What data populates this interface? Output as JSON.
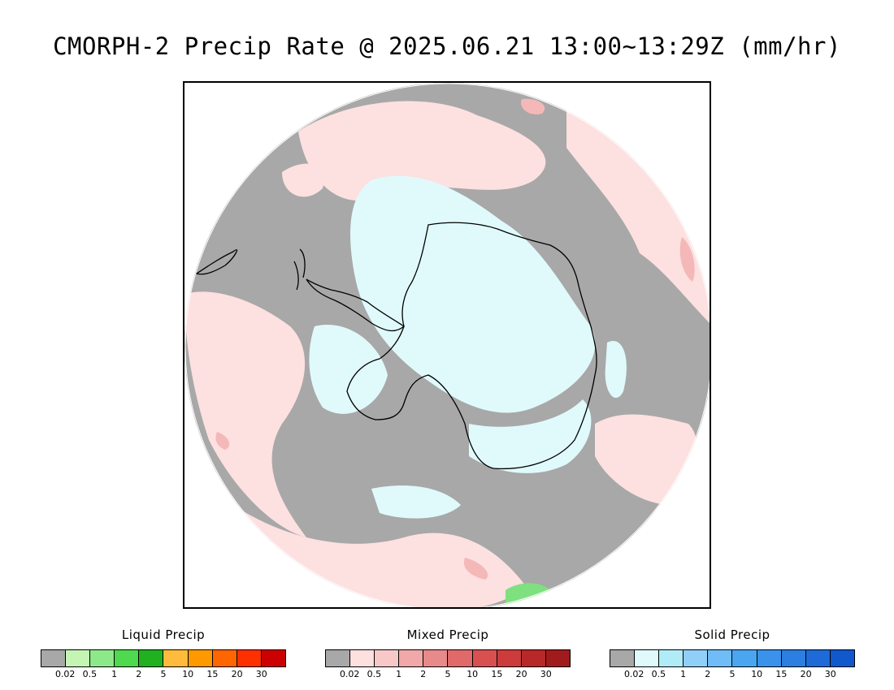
{
  "title": "CMORPH-2 Precip Rate @ 2025.06.21 13:00~13:29Z (mm/hr)",
  "map": {
    "projection": "south-polar-stereographic",
    "colors": {
      "no_precip": "#a8a8a8",
      "mixed_light": "#fde0e0",
      "mixed_moderate": "#f4b8b8",
      "solid_light": "#e0fafc",
      "liquid_light": "#7fe07f",
      "coastline": "#000000",
      "outside": "#ffffff"
    }
  },
  "legends": [
    {
      "id": "liquid",
      "title": "Liquid Precip",
      "ticks": [
        "0.02",
        "0.5",
        "1",
        "2",
        "5",
        "10",
        "15",
        "20",
        "30"
      ],
      "colors": [
        "#a8a8a8",
        "#c4f5b4",
        "#8de88a",
        "#4ed94e",
        "#20b020",
        "#ffbb3c",
        "#ff9900",
        "#ff6600",
        "#ff3000",
        "#cc0000"
      ]
    },
    {
      "id": "mixed",
      "title": "Mixed Precip",
      "ticks": [
        "0.02",
        "0.5",
        "1",
        "2",
        "5",
        "10",
        "15",
        "20",
        "30"
      ],
      "colors": [
        "#a8a8a8",
        "#fde0e0",
        "#f8c8c8",
        "#f0a8a8",
        "#e88a8a",
        "#e06a6a",
        "#d85050",
        "#cc3c3c",
        "#b82828",
        "#a01c1c"
      ]
    },
    {
      "id": "solid",
      "title": "Solid Precip",
      "ticks": [
        "0.02",
        "0.5",
        "1",
        "2",
        "5",
        "10",
        "15",
        "20",
        "30"
      ],
      "colors": [
        "#a8a8a8",
        "#e0fafc",
        "#b0ecf8",
        "#90d0f8",
        "#70bcf6",
        "#4aa6f0",
        "#3a92ea",
        "#2c7ee0",
        "#1e6ad8",
        "#1058cc"
      ]
    }
  ]
}
